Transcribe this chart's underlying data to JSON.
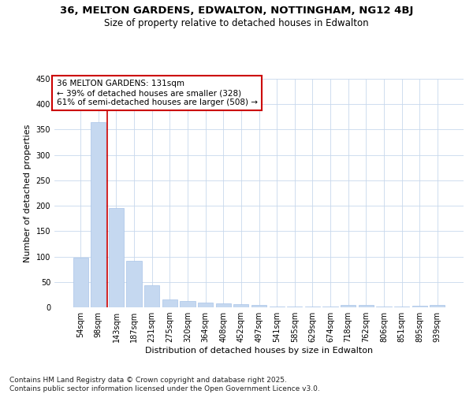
{
  "title_line1": "36, MELTON GARDENS, EDWALTON, NOTTINGHAM, NG12 4BJ",
  "title_line2": "Size of property relative to detached houses in Edwalton",
  "xlabel": "Distribution of detached houses by size in Edwalton",
  "ylabel": "Number of detached properties",
  "categories": [
    "54sqm",
    "98sqm",
    "143sqm",
    "187sqm",
    "231sqm",
    "275sqm",
    "320sqm",
    "364sqm",
    "408sqm",
    "452sqm",
    "497sqm",
    "541sqm",
    "585sqm",
    "629sqm",
    "674sqm",
    "718sqm",
    "762sqm",
    "806sqm",
    "851sqm",
    "895sqm",
    "939sqm"
  ],
  "values": [
    98,
    365,
    195,
    92,
    44,
    15,
    13,
    10,
    8,
    6,
    4,
    2,
    1,
    1,
    1,
    5,
    5,
    1,
    1,
    3,
    4
  ],
  "bar_color": "#c5d8f0",
  "bar_edgecolor": "#a8c4e8",
  "grid_color": "#c8d8ec",
  "bg_color": "#ffffff",
  "vline_color": "#cc0000",
  "vline_x": 1.5,
  "annotation_text": "36 MELTON GARDENS: 131sqm\n← 39% of detached houses are smaller (328)\n61% of semi-detached houses are larger (508) →",
  "annotation_box_facecolor": "#ffffff",
  "annotation_box_edgecolor": "#cc0000",
  "ylim": [
    0,
    450
  ],
  "yticks": [
    0,
    50,
    100,
    150,
    200,
    250,
    300,
    350,
    400,
    450
  ],
  "footer_line1": "Contains HM Land Registry data © Crown copyright and database right 2025.",
  "footer_line2": "Contains public sector information licensed under the Open Government Licence v3.0.",
  "title_fontsize": 9.5,
  "subtitle_fontsize": 8.5,
  "tick_fontsize": 7,
  "label_fontsize": 8,
  "annotation_fontsize": 7.5,
  "footer_fontsize": 6.5
}
